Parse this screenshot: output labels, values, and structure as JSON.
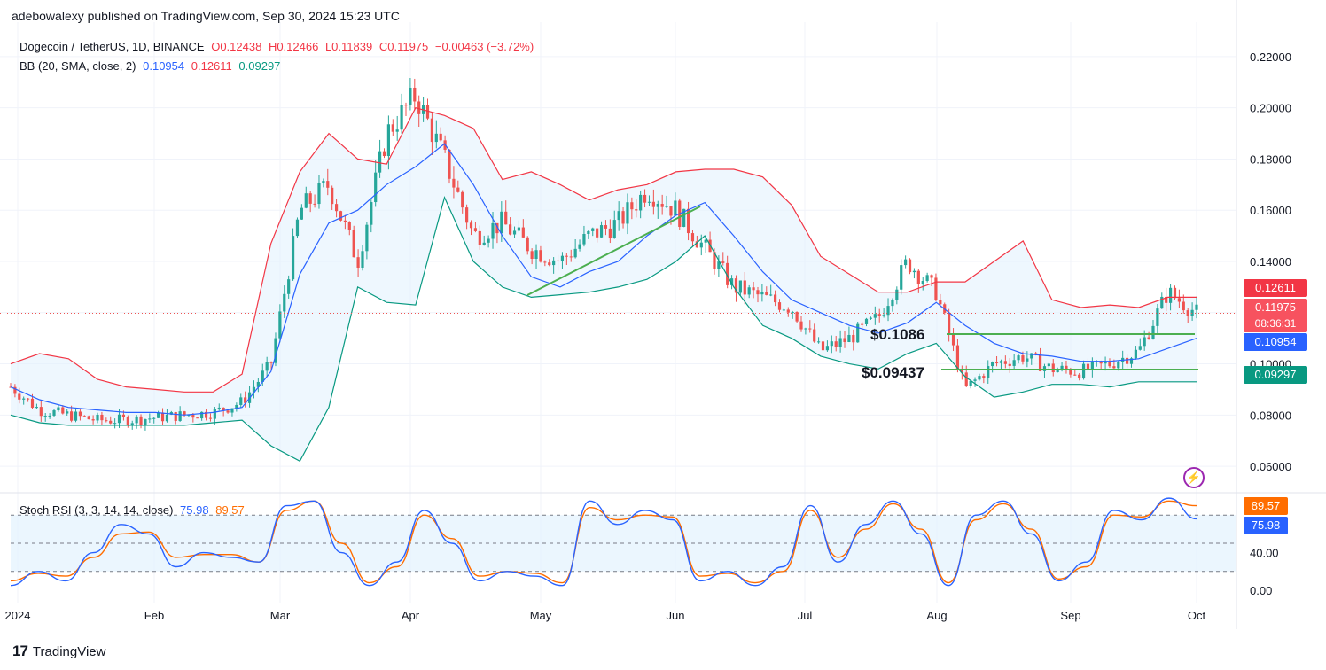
{
  "header": {
    "publisher": "adebowalexy published on TradingView.com, Sep 30, 2024 15:23 UTC"
  },
  "legend": {
    "symbol": "Dogecoin / TetherUS, 1D, BINANCE",
    "open": "O0.12438",
    "high": "H0.12466",
    "low": "L0.11839",
    "close": "C0.11975",
    "change": "−0.00463 (−3.72%)",
    "bb_label": "BB (20, SMA, close, 2)",
    "bb_mid": "0.10954",
    "bb_upper": "0.12611",
    "bb_lower": "0.09297",
    "rsi_label": "Stoch RSI (3, 3, 14, 14, close)",
    "rsi_k": "75.98",
    "rsi_d": "89.57"
  },
  "price_tags": {
    "upper": "0.12611",
    "last": "0.11975",
    "countdown": "08:36:31",
    "mid": "0.10954",
    "lower": "0.09297"
  },
  "rsi_tags": {
    "d": "89.57",
    "k": "75.98"
  },
  "annotations": {
    "resistance_label": "$0.1086",
    "support_label": "$0.09437"
  },
  "footer": {
    "brand": "TradingView"
  },
  "colors": {
    "up": "#26a69a",
    "down": "#ef5350",
    "bb_upper": "#f23645",
    "bb_mid": "#2962ff",
    "bb_lower": "#089981",
    "bb_fill": "#e3f2fd",
    "rsi_k": "#2962ff",
    "rsi_d": "#ff6d00",
    "trendline": "#4caf50"
  },
  "chart_data": [
    {
      "type": "line",
      "subtype": "candlestick-with-bollinger-bands",
      "title": "Dogecoin / TetherUS, 1D, BINANCE",
      "y_ticks": [
        0.06,
        0.08,
        0.1,
        0.12,
        0.14,
        0.16,
        0.18,
        0.2,
        0.22
      ],
      "y_tick_labels": [
        "0.06000",
        "0.08000",
        "0.10000",
        "0.12000",
        "0.14000",
        "0.16000",
        "0.18000",
        "0.20000",
        "0.22000"
      ],
      "ylim": [
        0.05,
        0.23
      ],
      "x_tick_labels": [
        "2024",
        "Feb",
        "Mar",
        "Apr",
        "May",
        "Jun",
        "Jul",
        "Aug",
        "Sep",
        "Oct"
      ],
      "grid": true,
      "series": [
        {
          "name": "BB upper",
          "values": [
            0.1,
            0.104,
            0.102,
            0.094,
            0.091,
            0.09,
            0.089,
            0.089,
            0.096,
            0.147,
            0.175,
            0.19,
            0.18,
            0.178,
            0.2,
            0.197,
            0.192,
            0.172,
            0.175,
            0.17,
            0.164,
            0.168,
            0.17,
            0.175,
            0.176,
            0.176,
            0.173,
            0.162,
            0.142,
            0.135,
            0.128,
            0.128,
            0.132,
            0.132,
            0.14,
            0.148,
            0.125,
            0.122,
            0.123,
            0.122,
            0.126,
            0.126
          ]
        },
        {
          "name": "BB mid",
          "values": [
            0.091,
            0.086,
            0.083,
            0.082,
            0.081,
            0.081,
            0.08,
            0.081,
            0.083,
            0.097,
            0.135,
            0.155,
            0.16,
            0.17,
            0.177,
            0.186,
            0.17,
            0.15,
            0.134,
            0.13,
            0.136,
            0.14,
            0.15,
            0.158,
            0.163,
            0.15,
            0.136,
            0.125,
            0.12,
            0.115,
            0.112,
            0.116,
            0.124,
            0.115,
            0.108,
            0.104,
            0.103,
            0.101,
            0.101,
            0.102,
            0.106,
            0.11
          ]
        },
        {
          "name": "BB lower",
          "values": [
            0.08,
            0.077,
            0.076,
            0.076,
            0.076,
            0.076,
            0.076,
            0.077,
            0.078,
            0.068,
            0.062,
            0.083,
            0.13,
            0.124,
            0.123,
            0.165,
            0.14,
            0.13,
            0.126,
            0.127,
            0.128,
            0.13,
            0.133,
            0.14,
            0.15,
            0.13,
            0.115,
            0.11,
            0.103,
            0.1,
            0.098,
            0.104,
            0.108,
            0.095,
            0.087,
            0.089,
            0.092,
            0.092,
            0.091,
            0.093,
            0.093,
            0.093
          ]
        }
      ],
      "close_approx": [
        0.091,
        0.082,
        0.08,
        0.078,
        0.078,
        0.079,
        0.08,
        0.081,
        0.085,
        0.1,
        0.16,
        0.17,
        0.14,
        0.19,
        0.205,
        0.18,
        0.15,
        0.155,
        0.145,
        0.14,
        0.15,
        0.155,
        0.168,
        0.16,
        0.145,
        0.13,
        0.126,
        0.122,
        0.105,
        0.11,
        0.118,
        0.14,
        0.128,
        0.09,
        0.1,
        0.103,
        0.098,
        0.097,
        0.1,
        0.105,
        0.128,
        0.12
      ],
      "last_price": 0.11975,
      "annotations": [
        "$0.1086",
        "$0.09437"
      ]
    },
    {
      "type": "line",
      "title": "Stoch RSI (3, 3, 14, 14, close)",
      "y_ticks": [
        0,
        40,
        80
      ],
      "y_tick_labels": [
        "0.00",
        "40.00",
        ""
      ],
      "ylim": [
        0,
        100
      ],
      "bands": [
        20,
        50,
        80
      ],
      "series": [
        {
          "name": "K",
          "values": [
            5,
            20,
            10,
            40,
            70,
            60,
            25,
            40,
            35,
            30,
            90,
            95,
            40,
            5,
            30,
            85,
            50,
            10,
            20,
            15,
            5,
            95,
            70,
            85,
            75,
            10,
            20,
            5,
            25,
            90,
            30,
            70,
            95,
            60,
            5,
            80,
            95,
            60,
            10,
            30,
            85,
            75,
            98,
            76
          ]
        },
        {
          "name": "D",
          "values": [
            10,
            18,
            15,
            35,
            60,
            62,
            35,
            38,
            38,
            30,
            85,
            95,
            50,
            8,
            25,
            80,
            55,
            15,
            20,
            18,
            8,
            88,
            75,
            80,
            78,
            15,
            18,
            8,
            20,
            85,
            35,
            65,
            92,
            65,
            8,
            75,
            92,
            65,
            12,
            25,
            80,
            78,
            95,
            90
          ]
        }
      ],
      "last_k": 75.98,
      "last_d": 89.57
    }
  ]
}
